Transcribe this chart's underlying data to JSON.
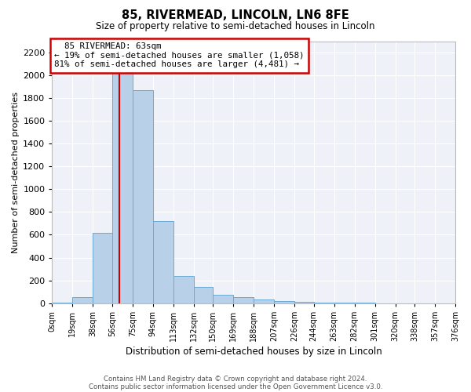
{
  "title": "85, RIVERMEAD, LINCOLN, LN6 8FE",
  "subtitle": "Size of property relative to semi-detached houses in Lincoln",
  "xlabel": "Distribution of semi-detached houses by size in Lincoln",
  "ylabel": "Number of semi-detached properties",
  "footer_line1": "Contains HM Land Registry data © Crown copyright and database right 2024.",
  "footer_line2": "Contains public sector information licensed under the Open Government Licence v3.0.",
  "annotation_title": "85 RIVERMEAD: 63sqm",
  "annotation_line1": "← 19% of semi-detached houses are smaller (1,058)",
  "annotation_line2": "81% of semi-detached houses are larger (4,481) →",
  "property_size": 63,
  "bin_edges": [
    0,
    19,
    38,
    56,
    75,
    94,
    113,
    132,
    150,
    169,
    188,
    207,
    226,
    244,
    263,
    282,
    301,
    320,
    338,
    357,
    376
  ],
  "bin_counts": [
    3,
    50,
    620,
    2200,
    1870,
    720,
    240,
    140,
    75,
    50,
    30,
    15,
    8,
    5,
    3,
    2,
    1,
    0,
    0,
    0
  ],
  "bar_color": "#b8d0e8",
  "bar_edge_color": "#6aaad4",
  "vline_color": "#cc0000",
  "annotation_box_color": "#cc0000",
  "background_color": "#eef2f8",
  "grid_color": "#ffffff",
  "fig_bg_color": "#ffffff",
  "ylim": [
    0,
    2300
  ],
  "yticks": [
    0,
    200,
    400,
    600,
    800,
    1000,
    1200,
    1400,
    1600,
    1800,
    2000,
    2200
  ]
}
